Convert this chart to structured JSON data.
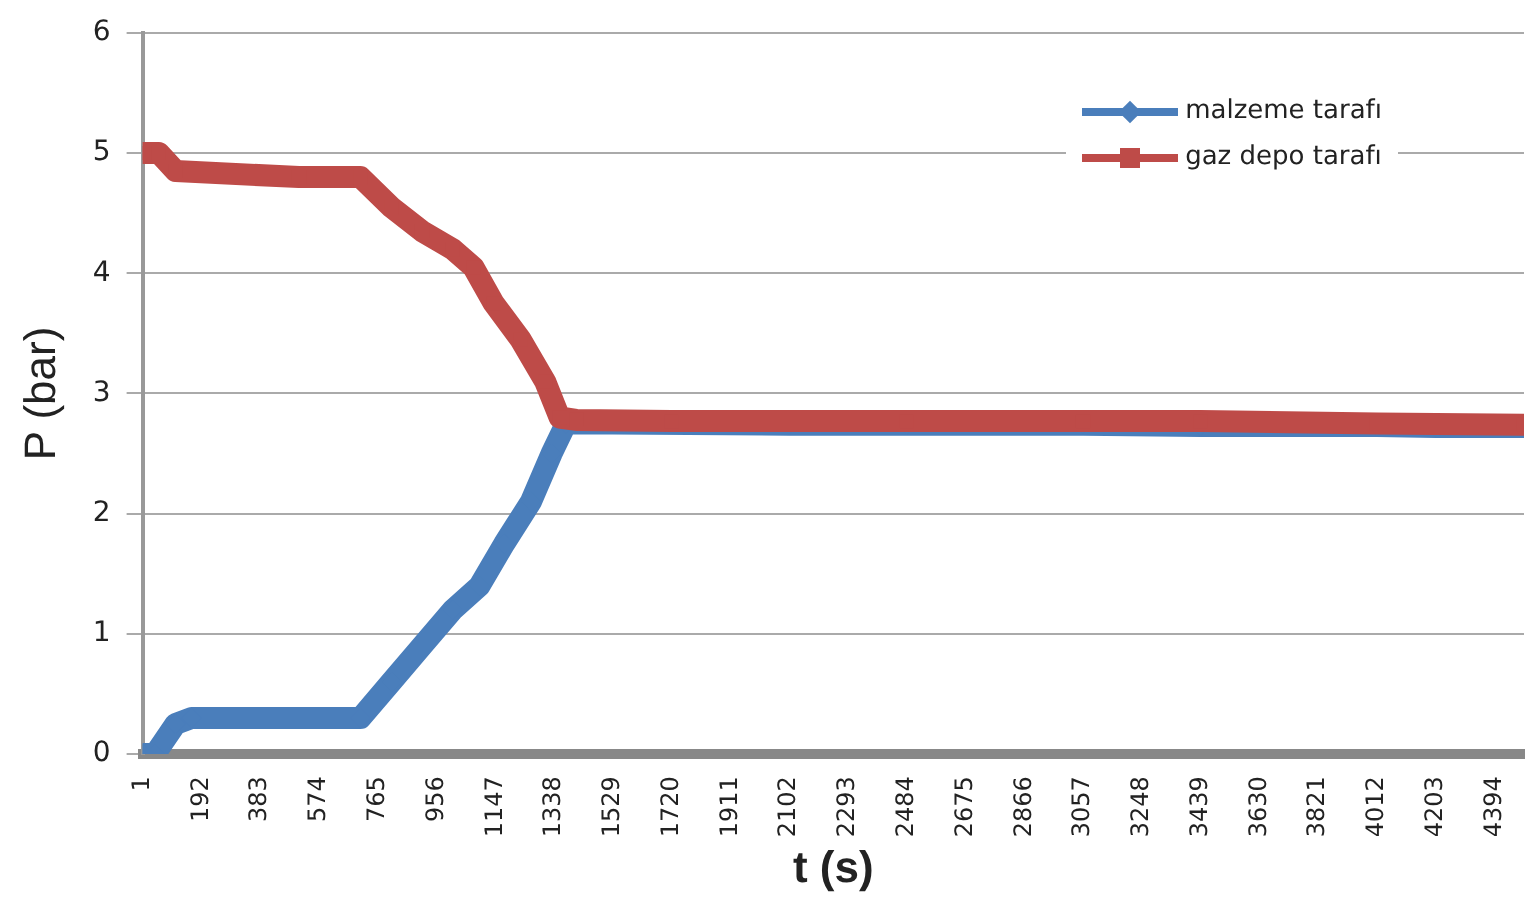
{
  "chart_data": {
    "type": "line",
    "xlabel": "t (s)",
    "ylabel": "P (bar)",
    "xlim": [
      1,
      4490
    ],
    "xticks": [
      1,
      192,
      383,
      574,
      765,
      956,
      1147,
      1338,
      1529,
      1720,
      1911,
      2102,
      2293,
      2484,
      2675,
      2866,
      3057,
      3248,
      3439,
      3630,
      3821,
      4012,
      4203,
      4394
    ],
    "ylim": [
      0,
      6
    ],
    "yticks": [
      0,
      1,
      2,
      3,
      4,
      5,
      6
    ],
    "grid": "y",
    "legend": "top right",
    "line_style": "solid",
    "series": [
      {
        "name": "malzeme tarafı",
        "color": "#4a7ebb",
        "marker": "diamond",
        "x": [
          1,
          41,
          108,
          160,
          709,
          809,
          909,
          1009,
          1096,
          1176,
          1263,
          1330,
          1377,
          1529,
          2102,
          2484,
          3057,
          3439,
          4012,
          4203,
          4490
        ],
        "values": [
          0,
          0,
          0.25,
          0.3,
          0.3,
          0.6,
          0.9,
          1.2,
          1.4,
          1.75,
          2.1,
          2.5,
          2.75,
          2.75,
          2.74,
          2.74,
          2.74,
          2.73,
          2.73,
          2.72,
          2.72
        ]
      },
      {
        "name": "gaz depo tarafı",
        "color": "#be4b48",
        "marker": "square",
        "x": [
          1,
          54,
          108,
          509,
          709,
          809,
          909,
          1009,
          1076,
          1142,
          1229,
          1309,
          1356,
          1410,
          1720,
          2484,
          3057,
          3439,
          4012,
          4490
        ],
        "values": [
          5,
          5,
          4.85,
          4.8,
          4.8,
          4.55,
          4.35,
          4.2,
          4.05,
          3.75,
          3.45,
          3.1,
          2.8,
          2.78,
          2.77,
          2.77,
          2.77,
          2.77,
          2.75,
          2.74
        ]
      }
    ]
  }
}
